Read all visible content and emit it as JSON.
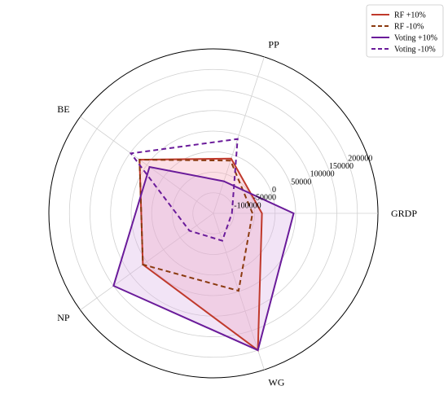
{
  "chart_data": {
    "type": "radar",
    "categories": [
      "GRDP",
      "PP",
      "BE",
      "NP",
      "WG"
    ],
    "r_ticks": [
      -100000,
      -50000,
      0,
      50000,
      100000,
      150000,
      200000
    ],
    "r_tick_labels": [
      "-100000",
      "-50000",
      "0",
      "50000",
      "100000",
      "150000",
      "200000"
    ],
    "r_range": [
      -150000,
      250000
    ],
    "grid": true,
    "legend_position": "top-right",
    "series": [
      {
        "name": "RF +10%",
        "color": "#c0392b",
        "line_style": "solid",
        "fill": true,
        "fill_color": "#f5a3b5",
        "values": [
          -32000,
          -10000,
          72000,
          62000,
          200000
        ]
      },
      {
        "name": "RF -10%",
        "color": "#8b3a0f",
        "line_style": "dashed",
        "fill": false,
        "values": [
          -55000,
          -15000,
          72000,
          62000,
          48000
        ]
      },
      {
        "name": "Voting +10%",
        "color": "#6a1b9a",
        "line_style": "solid",
        "fill": true,
        "fill_color": "#d9b3e6",
        "values": [
          45000,
          -68000,
          42000,
          150000,
          200000
        ]
      },
      {
        "name": "Voting -10%",
        "color": "#6a1b9a",
        "line_style": "dashed",
        "fill": false,
        "values": [
          -105000,
          40000,
          98000,
          -78000,
          -80000
        ]
      }
    ]
  }
}
